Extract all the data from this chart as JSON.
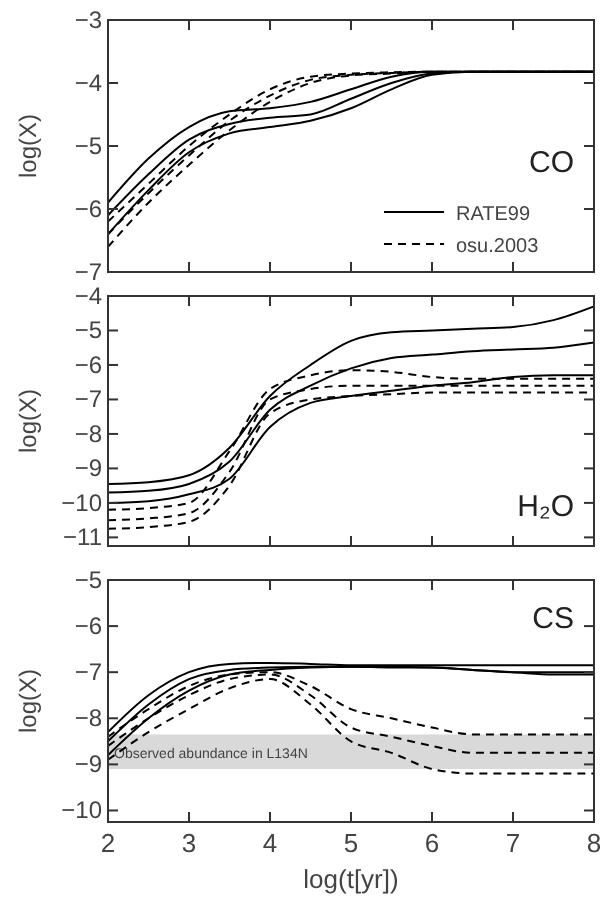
{
  "chart_data": [
    {
      "type": "line",
      "ylabel": "log(X)",
      "annotations": [
        "CO"
      ],
      "xlim": [
        2,
        8
      ],
      "xticks": [
        2,
        3,
        4,
        5,
        6,
        7,
        8
      ],
      "ylim": [
        -7,
        -3
      ],
      "yticks": [
        -7,
        -6,
        -5,
        -4,
        -3
      ],
      "tick_labels": "y",
      "legend": "bottom right",
      "series": [
        {
          "name": "RATE99",
          "color": "#000000",
          "line_style": "solid",
          "x": [
            2,
            2.5,
            3,
            3.5,
            4,
            4.5,
            5,
            5.5,
            6,
            6.5,
            7,
            7.5,
            8
          ],
          "values": [
            -5.9,
            -5.2,
            -4.7,
            -4.45,
            -4.4,
            -4.3,
            -4.1,
            -3.9,
            -3.82,
            -3.82,
            -3.82,
            -3.82,
            -3.82
          ]
        },
        {
          "color": "#000000",
          "line_style": "solid",
          "x": [
            2,
            2.5,
            3,
            3.5,
            4,
            4.5,
            5,
            5.5,
            6,
            6.5,
            7,
            7.5,
            8
          ],
          "values": [
            -6.1,
            -5.45,
            -4.9,
            -4.65,
            -4.55,
            -4.5,
            -4.25,
            -4.0,
            -3.85,
            -3.82,
            -3.82,
            -3.82,
            -3.82
          ]
        },
        {
          "color": "#000000",
          "line_style": "solid",
          "x": [
            2,
            2.5,
            3,
            3.5,
            4,
            4.5,
            5,
            5.5,
            6,
            6.5,
            7,
            7.5,
            8
          ],
          "values": [
            -6.4,
            -5.7,
            -5.1,
            -4.8,
            -4.7,
            -4.6,
            -4.4,
            -4.1,
            -3.87,
            -3.82,
            -3.82,
            -3.82,
            -3.82
          ]
        },
        {
          "name": "osu.2003",
          "color": "#000000",
          "line_style": "dashed",
          "x": [
            2,
            2.5,
            3,
            3.5,
            4,
            4.5,
            5,
            5.5,
            6,
            6.5,
            7,
            7.5,
            8
          ],
          "values": [
            -6.2,
            -5.6,
            -5.0,
            -4.5,
            -4.1,
            -3.9,
            -3.85,
            -3.83,
            -3.82,
            -3.82,
            -3.82,
            -3.82,
            -3.82
          ]
        },
        {
          "color": "#000000",
          "line_style": "dashed",
          "x": [
            2,
            2.5,
            3,
            3.5,
            4,
            4.5,
            5,
            5.5,
            6,
            6.5,
            7,
            7.5,
            8
          ],
          "values": [
            -6.4,
            -5.75,
            -5.15,
            -4.6,
            -4.2,
            -3.95,
            -3.87,
            -3.84,
            -3.82,
            -3.82,
            -3.82,
            -3.82,
            -3.82
          ]
        },
        {
          "color": "#000000",
          "line_style": "dashed",
          "x": [
            2,
            2.5,
            3,
            3.5,
            4,
            4.5,
            5,
            5.5,
            6,
            6.5,
            7,
            7.5,
            8
          ],
          "values": [
            -6.6,
            -5.9,
            -5.3,
            -4.75,
            -4.3,
            -4.0,
            -3.88,
            -3.85,
            -3.82,
            -3.82,
            -3.82,
            -3.82,
            -3.82
          ]
        }
      ]
    },
    {
      "type": "line",
      "ylabel": "log(X)",
      "annotations": [
        "H₂O"
      ],
      "xlim": [
        2,
        8
      ],
      "xticks": [
        2,
        3,
        4,
        5,
        6,
        7,
        8
      ],
      "ylim": [
        -11.25,
        -4
      ],
      "yticks": [
        -11,
        -10,
        -9,
        -8,
        -7,
        -6,
        -5,
        -4
      ],
      "tick_labels": "y",
      "series": [
        {
          "color": "#000000",
          "line_style": "solid",
          "x": [
            2,
            2.5,
            3,
            3.5,
            4,
            4.5,
            5,
            5.5,
            6,
            6.5,
            7,
            7.5,
            8
          ],
          "values": [
            -9.45,
            -9.4,
            -9.2,
            -8.4,
            -6.9,
            -6.0,
            -5.3,
            -5.05,
            -5.0,
            -4.95,
            -4.9,
            -4.7,
            -4.3
          ]
        },
        {
          "color": "#000000",
          "line_style": "solid",
          "x": [
            2,
            2.5,
            3,
            3.5,
            4,
            4.5,
            5,
            5.5,
            6,
            6.5,
            7,
            7.5,
            8
          ],
          "values": [
            -9.7,
            -9.65,
            -9.45,
            -8.8,
            -7.3,
            -6.6,
            -6.1,
            -5.8,
            -5.7,
            -5.6,
            -5.55,
            -5.5,
            -5.35
          ]
        },
        {
          "color": "#000000",
          "line_style": "solid",
          "x": [
            2,
            2.5,
            3,
            3.5,
            4,
            4.5,
            5,
            5.5,
            6,
            6.5,
            7,
            7.5,
            8
          ],
          "values": [
            -10.0,
            -9.95,
            -9.75,
            -9.3,
            -7.8,
            -7.1,
            -6.9,
            -6.75,
            -6.6,
            -6.5,
            -6.35,
            -6.3,
            -6.3
          ]
        },
        {
          "color": "#000000",
          "line_style": "dashed",
          "x": [
            2,
            2.5,
            3,
            3.5,
            4,
            4.5,
            5,
            5.5,
            6,
            6.5,
            7,
            7.5,
            8
          ],
          "values": [
            -10.2,
            -10.15,
            -10.0,
            -8.5,
            -6.7,
            -6.3,
            -6.15,
            -6.2,
            -6.35,
            -6.4,
            -6.4,
            -6.4,
            -6.4
          ]
        },
        {
          "color": "#000000",
          "line_style": "dashed",
          "x": [
            2,
            2.5,
            3,
            3.5,
            4,
            4.5,
            5,
            5.5,
            6,
            6.5,
            7,
            7.5,
            8
          ],
          "values": [
            -10.5,
            -10.45,
            -10.3,
            -9.1,
            -7.0,
            -6.7,
            -6.6,
            -6.6,
            -6.6,
            -6.6,
            -6.6,
            -6.6,
            -6.6
          ]
        },
        {
          "color": "#000000",
          "line_style": "dashed",
          "x": [
            2,
            2.5,
            3,
            3.5,
            4,
            4.5,
            5,
            5.5,
            6,
            6.5,
            7,
            7.5,
            8
          ],
          "values": [
            -10.75,
            -10.7,
            -10.55,
            -9.5,
            -7.4,
            -7.0,
            -6.9,
            -6.85,
            -6.8,
            -6.8,
            -6.8,
            -6.8,
            -6.8
          ]
        }
      ]
    },
    {
      "type": "line",
      "xlabel": "log(t[yr])",
      "ylabel": "log(X)",
      "annotations": [
        "CS"
      ],
      "xlim": [
        2,
        8
      ],
      "xticks": [
        2,
        3,
        4,
        5,
        6,
        7,
        8
      ],
      "ylim": [
        -10.25,
        -5
      ],
      "yticks": [
        -10,
        -9,
        -8,
        -7,
        -6,
        -5
      ],
      "bands": [
        {
          "axis": "y",
          "from": -9.1,
          "to": -8.35,
          "label": "Observed abundance in L134N",
          "color": "#d9d9d9"
        }
      ],
      "series": [
        {
          "color": "#000000",
          "line_style": "solid",
          "x": [
            2,
            2.5,
            3,
            3.5,
            4,
            4.5,
            5,
            5.5,
            6,
            6.5,
            7,
            7.5,
            8
          ],
          "values": [
            -8.3,
            -7.5,
            -7.0,
            -6.82,
            -6.8,
            -6.82,
            -6.85,
            -6.85,
            -6.85,
            -6.85,
            -6.85,
            -6.85,
            -6.85
          ]
        },
        {
          "color": "#000000",
          "line_style": "solid",
          "x": [
            2,
            2.5,
            3,
            3.5,
            4,
            4.5,
            5,
            5.5,
            6,
            6.5,
            7,
            7.5,
            8
          ],
          "values": [
            -8.5,
            -7.7,
            -7.15,
            -6.95,
            -6.9,
            -6.88,
            -6.88,
            -6.88,
            -6.9,
            -6.95,
            -7.0,
            -7.0,
            -7.0
          ]
        },
        {
          "color": "#000000",
          "line_style": "solid",
          "x": [
            2,
            2.5,
            3,
            3.5,
            4,
            4.5,
            5,
            5.5,
            6,
            6.5,
            7,
            7.5,
            8
          ],
          "values": [
            -8.8,
            -8.0,
            -7.4,
            -7.05,
            -6.95,
            -6.9,
            -6.88,
            -6.9,
            -6.9,
            -6.95,
            -7.0,
            -7.05,
            -7.05
          ]
        },
        {
          "color": "#000000",
          "line_style": "dashed",
          "x": [
            2,
            2.5,
            3,
            3.5,
            4,
            4.5,
            5,
            5.5,
            6,
            6.5,
            7,
            7.5,
            8
          ],
          "values": [
            -8.4,
            -7.8,
            -7.3,
            -7.05,
            -7.0,
            -7.3,
            -7.8,
            -8.0,
            -8.2,
            -8.35,
            -8.35,
            -8.35,
            -8.35
          ]
        },
        {
          "color": "#000000",
          "line_style": "dashed",
          "x": [
            2,
            2.5,
            3,
            3.5,
            4,
            4.5,
            5,
            5.5,
            6,
            6.5,
            7,
            7.5,
            8
          ],
          "values": [
            -8.6,
            -8.0,
            -7.5,
            -7.15,
            -7.05,
            -7.5,
            -8.2,
            -8.4,
            -8.6,
            -8.75,
            -8.75,
            -8.75,
            -8.75
          ]
        },
        {
          "color": "#000000",
          "line_style": "dashed",
          "x": [
            2,
            2.5,
            3,
            3.5,
            4,
            4.5,
            5,
            5.5,
            6,
            6.5,
            7,
            7.5,
            8
          ],
          "values": [
            -8.9,
            -8.3,
            -7.8,
            -7.35,
            -7.15,
            -7.7,
            -8.5,
            -8.75,
            -9.1,
            -9.2,
            -9.2,
            -9.2,
            -9.2
          ]
        }
      ]
    }
  ]
}
